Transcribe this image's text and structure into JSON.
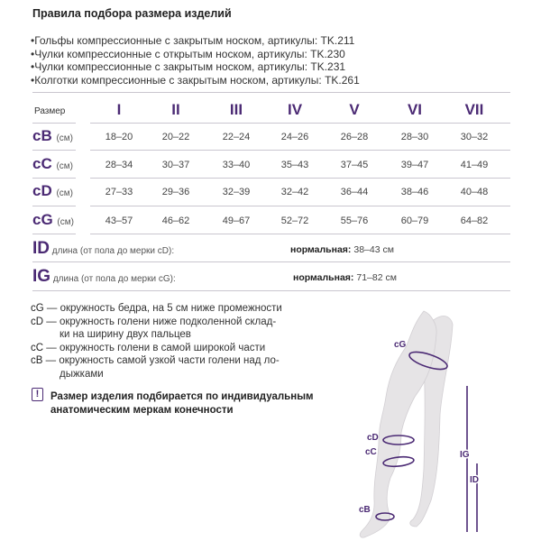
{
  "title": "Правила подбора размера изделий",
  "items": [
    "•Гольфы компрессионные с закрытым носком, артикулы: TK.211",
    "•Чулки компрессионные с открытым носком, артикулы: TK.230",
    "•Чулки компрессионные с закрытым носком, артикулы: TK.231",
    "•Колготки компрессионные с закрытым носком, артикулы: TK.261"
  ],
  "table": {
    "size_label": "Размер",
    "sizes": [
      "I",
      "II",
      "III",
      "IV",
      "V",
      "VI",
      "VII"
    ],
    "unit": "(см)",
    "rows": [
      {
        "key": "cB",
        "values": [
          "18–20",
          "20–22",
          "22–24",
          "24–26",
          "26–28",
          "28–30",
          "30–32"
        ]
      },
      {
        "key": "cC",
        "values": [
          "28–34",
          "30–37",
          "33–40",
          "35–43",
          "37–45",
          "39–47",
          "41–49"
        ]
      },
      {
        "key": "cD",
        "values": [
          "27–33",
          "29–36",
          "32–39",
          "32–42",
          "36–44",
          "38–46",
          "40–48"
        ]
      },
      {
        "key": "cG",
        "values": [
          "43–57",
          "46–62",
          "49–67",
          "52–72",
          "55–76",
          "60–79",
          "64–82"
        ]
      }
    ],
    "lengths": [
      {
        "key": "ID",
        "desc": "длина (от пола до мерки cD):",
        "norm_label": "нормальная:",
        "norm_value": "38–43 см"
      },
      {
        "key": "IG",
        "desc": "длина (от пола до мерки cG):",
        "norm_label": "нормальная:",
        "norm_value": "71–82 см"
      }
    ]
  },
  "legend": [
    {
      "key": "cG",
      "text": "— окружность бедра, на 5 см ниже промежности",
      "cont": ""
    },
    {
      "key": "cD",
      "text": "— окружность голени ниже подколенной склад-",
      "cont": "ки на ширину двух пальцев"
    },
    {
      "key": "cC",
      "text": "— окружность голени в самой широкой части",
      "cont": ""
    },
    {
      "key": "cB",
      "text": "— окружность самой узкой части голени над ло-",
      "cont": "дыжками"
    }
  ],
  "note": {
    "icon": "exclamation-icon",
    "line1": "Размер изделия подбирается по индивидуальным",
    "line2": "анатомическим меркам конечности"
  },
  "diagram": {
    "labels": {
      "cG": "cG",
      "cD": "cD",
      "cC": "cC",
      "cB": "cB",
      "IG": "IG",
      "ID": "ID"
    }
  },
  "colors": {
    "accent": "#4b2a74",
    "leg": "#e6e4e6"
  }
}
